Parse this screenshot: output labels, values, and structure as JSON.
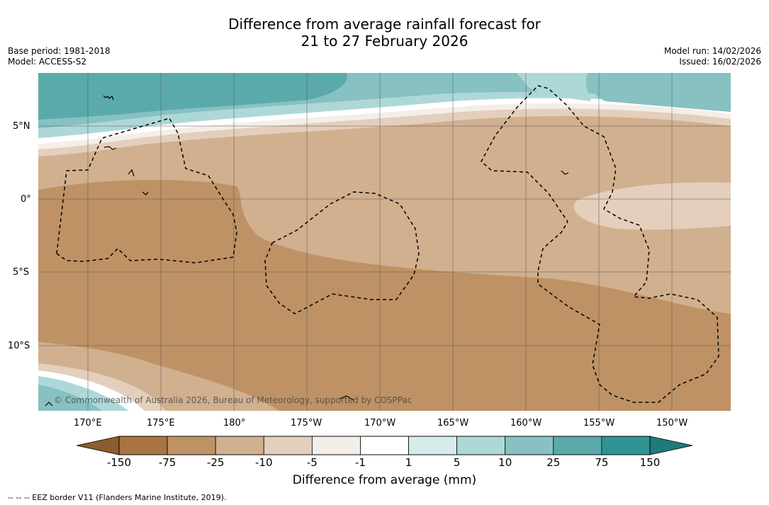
{
  "title": {
    "line1": "Difference from average rainfall forecast for",
    "line2": "21 to 27 February 2026"
  },
  "meta": {
    "base_period": "Base period: 1981-2018",
    "model": "Model: ACCESS-S2",
    "model_run": "Model run: 14/02/2026",
    "issued": "Issued: 16/02/2026"
  },
  "map": {
    "lat_labels": [
      "5°N",
      "0°",
      "5°S",
      "10°S"
    ],
    "lon_labels": [
      "170°E",
      "175°E",
      "180°",
      "175°W",
      "170°W",
      "165°W",
      "160°W",
      "155°W",
      "150°W"
    ],
    "copyright": "© Commonwealth of Australia 2026, Bureau of Meteorology, supported by COSPPac"
  },
  "colorbar": {
    "labels": [
      "-150",
      "-75",
      "-25",
      "-10",
      "-5",
      "-1",
      "1",
      "5",
      "10",
      "25",
      "75",
      "150"
    ],
    "colors": [
      "#a87441",
      "#be9265",
      "#d1b08f",
      "#e3cfbc",
      "#f4eee8",
      "#ffffff",
      "#d6ecea",
      "#aed8d8",
      "#87c1c2",
      "#5aaaab",
      "#2f9393"
    ],
    "low_extend_color": "#8c5d2e",
    "high_extend_color": "#207a7a",
    "xlabel": "Difference from average (mm)"
  },
  "footer": {
    "legend": "--  --  -- EEZ border V11 (Flanders Marine Institute, 2019)."
  }
}
